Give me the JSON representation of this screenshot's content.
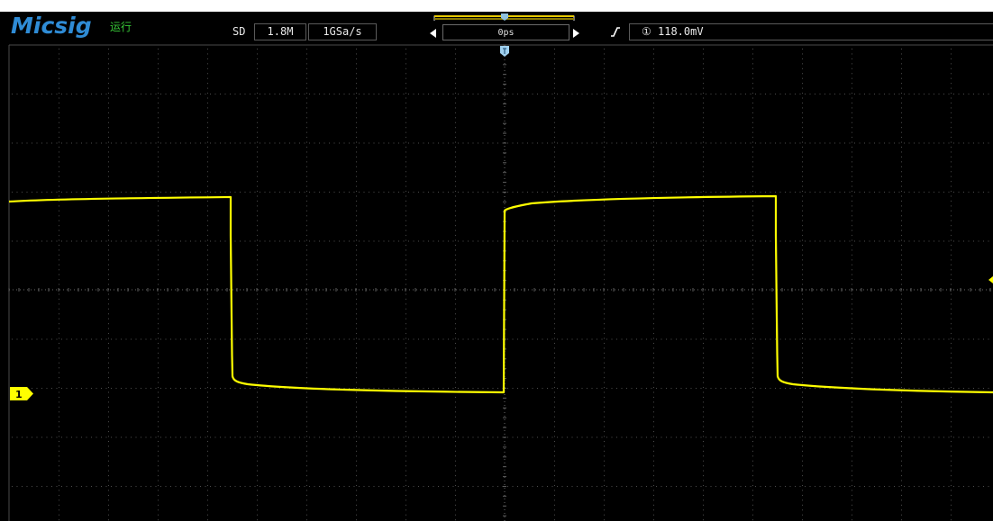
{
  "header": {
    "logo": "Micsig",
    "run_status": "运行",
    "acq_mode": "SD",
    "memory_depth": "1.8M",
    "sample_rate": "1GSa/s",
    "horizontal_position": "0ps",
    "trigger_source_symbol": "①",
    "trigger_level": "118.0mV"
  },
  "channel": {
    "marker_label": "1"
  },
  "colors": {
    "trace": "#ffff00",
    "logo": "#2f8cd6",
    "run_status": "#37c837",
    "grid": "#5a5a5a"
  }
}
